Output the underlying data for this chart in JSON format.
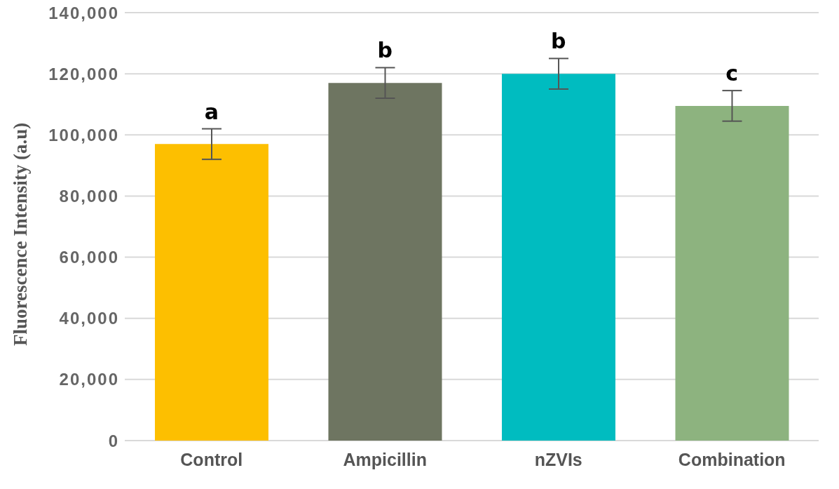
{
  "chart_data": {
    "type": "bar",
    "ylabel": "Fluorescence Intensity (a.u)",
    "categories": [
      "Control",
      "Ampicillin",
      "nZVIs",
      "Combination"
    ],
    "values": [
      97000,
      117000,
      120000,
      109500
    ],
    "colors": [
      "#fdbf00",
      "#6e7561",
      "#00bcc0",
      "#8db37f"
    ],
    "errors": [
      5000,
      5000,
      5000,
      5000
    ],
    "ylim": [
      0,
      140000
    ],
    "yticks": [
      0,
      {
        "value": 20000,
        "label": "20,000"
      },
      {
        "value": 40000,
        "label": "40,000"
      },
      {
        "value": 60000,
        "label": "60,000"
      },
      {
        "value": 80000,
        "label": "80,000"
      },
      {
        "value": 100000,
        "label": "100,000"
      },
      {
        "value": 120000,
        "label": "120,000"
      },
      {
        "value": 140000,
        "label": "140,000"
      }
    ],
    "grid": "y",
    "legend": false,
    "annotations": [
      {
        "text": "a",
        "x": "Control",
        "y": 102000
      },
      {
        "text": "b",
        "x": "Ampicillin",
        "y": 122000
      },
      {
        "text": "b",
        "x": "nZVIs",
        "y": 125000
      },
      {
        "text": "c",
        "x": "Combination",
        "y": 114500
      }
    ]
  }
}
